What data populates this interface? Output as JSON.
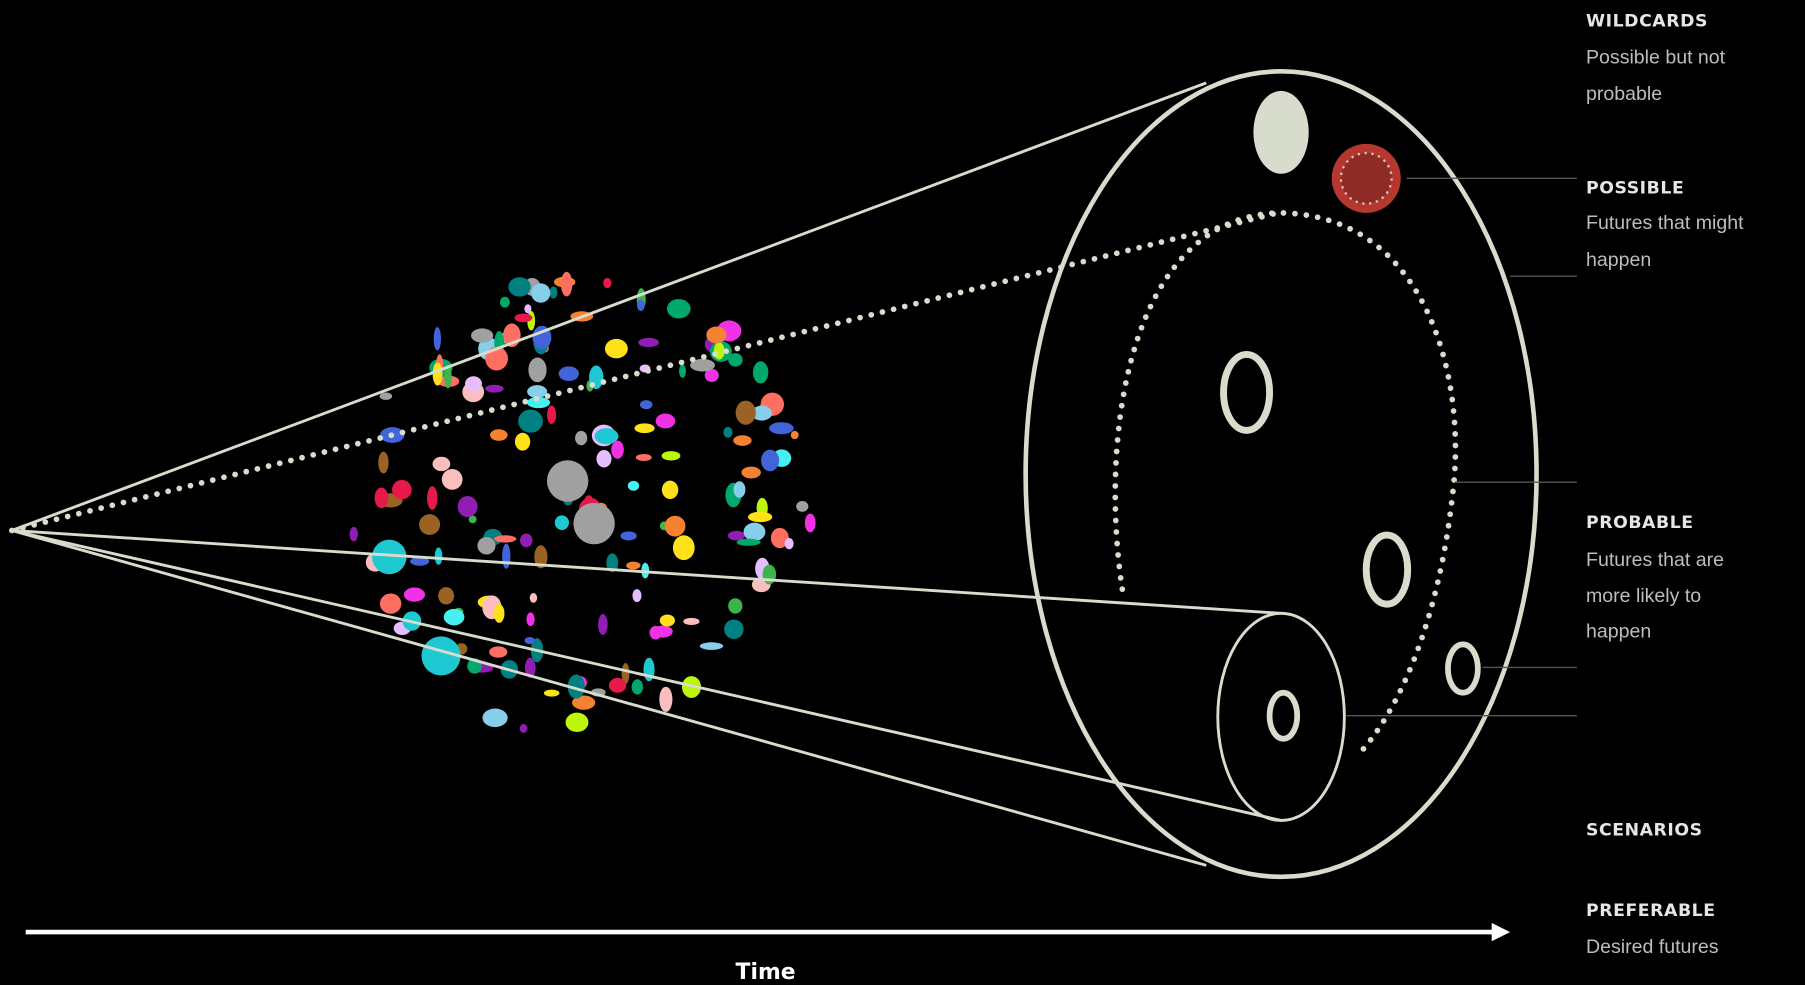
{
  "labels": [
    {
      "title": "WILDCARDS",
      "description": [
        "Possible but not",
        "probable"
      ]
    },
    {
      "title": "POSSIBLE",
      "description": [
        "Futures that might",
        "happen"
      ]
    },
    {
      "title": "PROBABLE",
      "description": [
        "Futures that are",
        "more likely to",
        "happen"
      ]
    },
    {
      "title": "SCENARIOS",
      "description": []
    },
    {
      "title": "PREFERABLE",
      "description": [
        "Desired futures"
      ]
    }
  ],
  "axis": {
    "label": "Time"
  }
}
